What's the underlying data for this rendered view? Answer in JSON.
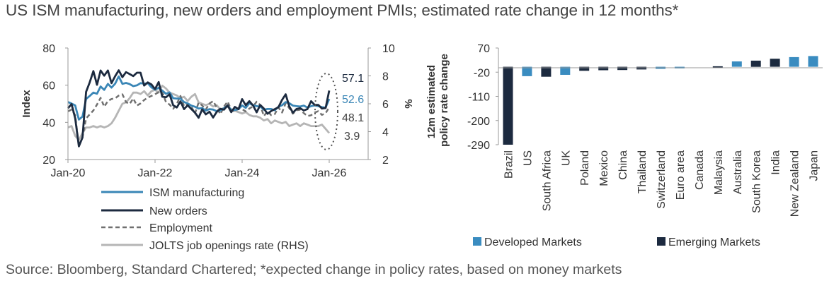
{
  "title": "US ISM manufacturing, new orders and employment PMIs; estimated rate change in 12 months*",
  "source": "Source: Bloomberg, Standard Chartered; *expected change in policy rates, based on money markets",
  "colors": {
    "ism": "#3a86b6",
    "new_orders": "#1c2a3f",
    "employment": "#707070",
    "jolts": "#b5b5b5",
    "developed": "#3a8cc0",
    "emerging": "#1c2a3f",
    "axis": "#9a9a9a"
  },
  "chart_data": [
    {
      "type": "line",
      "title": "",
      "ylabel": "Index",
      "y2label": "%",
      "xlabel": "",
      "xticks": [
        "Jan-20",
        "Jan-22",
        "Jan-24",
        "Jan-26"
      ],
      "ylim": [
        20,
        80
      ],
      "yticks": [
        "80",
        "60",
        "40",
        "20"
      ],
      "y2lim": [
        2,
        10
      ],
      "y2ticks": [
        "10",
        "8",
        "6",
        "4",
        "2"
      ],
      "x_start": 2020.0,
      "x_step": 0.0833333,
      "end_labels": {
        "new_orders": "57.1",
        "ism": "52.6",
        "employment": "48.1",
        "jolts": "3.9"
      },
      "series": [
        {
          "name": "ISM manufacturing",
          "key": "ism",
          "axis": "left",
          "style": "solid",
          "values": [
            50.9,
            50.1,
            49.1,
            41.5,
            43.1,
            52.6,
            54.2,
            56.0,
            55.4,
            59.3,
            57.5,
            60.7,
            58.7,
            60.8,
            64.7,
            60.7,
            61.2,
            60.6,
            59.5,
            59.9,
            61.1,
            60.8,
            61.1,
            58.8,
            57.6,
            58.6,
            57.1,
            55.4,
            56.1,
            53.0,
            52.8,
            52.8,
            50.9,
            50.2,
            49.0,
            48.4,
            47.4,
            47.7,
            46.3,
            47.1,
            46.9,
            46.0,
            46.4,
            47.6,
            49.0,
            46.7,
            46.7,
            47.1,
            49.1,
            47.8,
            50.3,
            49.2,
            48.7,
            48.5,
            46.8,
            47.2,
            47.2,
            46.5,
            48.4,
            49.2,
            50.9,
            50.3,
            49.0,
            48.7,
            48.5,
            49.0,
            48.0,
            48.7,
            49.1,
            48.7,
            48.2,
            47.9,
            52.6
          ]
        },
        {
          "name": "New orders",
          "key": "new_orders",
          "axis": "left",
          "style": "solid",
          "values": [
            47.6,
            49.8,
            42.2,
            27.1,
            31.8,
            56.4,
            61.5,
            67.6,
            60.2,
            67.9,
            65.1,
            67.9,
            61.1,
            64.8,
            68.0,
            64.3,
            67.0,
            66.0,
            64.9,
            66.7,
            66.7,
            59.8,
            61.5,
            60.4,
            57.9,
            61.7,
            53.8,
            53.5,
            55.1,
            49.2,
            48.0,
            51.3,
            47.1,
            49.2,
            47.2,
            45.2,
            42.5,
            47.0,
            44.3,
            45.7,
            42.6,
            45.6,
            47.3,
            46.8,
            49.2,
            45.5,
            48.3,
            47.1,
            52.5,
            49.2,
            51.4,
            49.1,
            45.4,
            49.3,
            47.4,
            44.6,
            46.1,
            47.1,
            48.1,
            52.1,
            55.1,
            48.6,
            45.2,
            47.2,
            47.6,
            46.4,
            47.1,
            51.4,
            49.4,
            49.4,
            47.4,
            47.7,
            57.1
          ]
        },
        {
          "name": "Employment",
          "key": "employment",
          "axis": "left",
          "style": "dashed",
          "values": [
            45.9,
            46.9,
            43.8,
            27.5,
            32.1,
            42.1,
            44.3,
            46.4,
            49.6,
            53.2,
            48.4,
            51.5,
            52.6,
            52.9,
            54.4,
            55.1,
            50.9,
            49.9,
            52.9,
            49.0,
            50.2,
            52.0,
            53.3,
            54.2,
            55.1,
            56.3,
            56.3,
            50.9,
            49.6,
            47.3,
            49.9,
            54.2,
            48.7,
            50.0,
            48.4,
            44.8,
            50.6,
            49.1,
            46.9,
            50.2,
            51.4,
            48.1,
            44.4,
            48.5,
            51.2,
            46.8,
            45.8,
            47.5,
            47.1,
            45.9,
            47.4,
            48.6,
            51.1,
            49.3,
            43.4,
            46.0,
            43.9,
            44.4,
            48.1,
            45.3,
            50.3,
            47.6,
            44.7,
            46.5,
            46.8,
            45.0,
            43.4,
            43.8,
            45.3,
            46.0,
            44.0,
            44.9,
            48.1
          ]
        },
        {
          "name": "JOLTS job openings rate (RHS)",
          "key": "jolts",
          "axis": "right",
          "style": "solid",
          "values": [
            4.3,
            4.4,
            3.7,
            3.4,
            3.9,
            4.3,
            4.3,
            4.4,
            4.3,
            4.4,
            4.3,
            4.4,
            4.6,
            5.0,
            5.5,
            6.0,
            6.1,
            6.4,
            6.8,
            6.8,
            6.7,
            6.9,
            6.6,
            6.9,
            7.0,
            6.8,
            7.3,
            7.1,
            6.8,
            6.7,
            6.6,
            6.4,
            6.5,
            6.2,
            6.5,
            6.7,
            6.1,
            6.0,
            5.9,
            6.0,
            5.8,
            5.9,
            5.6,
            5.7,
            5.8,
            5.6,
            5.5,
            5.4,
            5.3,
            5.4,
            5.2,
            5.1,
            5.1,
            5.0,
            4.8,
            4.9,
            4.6,
            4.8,
            4.7,
            4.6,
            4.7,
            4.4,
            4.5,
            4.6,
            4.4,
            4.6,
            4.5,
            4.4,
            4.4,
            4.4,
            4.5,
            4.2,
            3.9
          ]
        }
      ],
      "legend": [
        "ISM manufacturing",
        "New orders",
        "Employment",
        "JOLTS job openings rate (RHS)"
      ]
    },
    {
      "type": "bar",
      "title": "",
      "ylabel": "12m estimated policy rate change",
      "ylabel_lines": [
        "12m estimated",
        "policy rate change"
      ],
      "ylim": [
        -290,
        70
      ],
      "yticks": [
        "70",
        "-20",
        "-110",
        "-200",
        "-290"
      ],
      "categories": [
        "Brazil",
        "US",
        "South Africa",
        "UK",
        "Poland",
        "Mexico",
        "China",
        "Thailand",
        "Switzerland",
        "Euro area",
        "Canada",
        "Malaysia",
        "Australia",
        "South Korea",
        "India",
        "New Zealand",
        "Japan"
      ],
      "values": [
        -290,
        -35,
        -37,
        -30,
        -15,
        -13,
        -12,
        -10,
        -8,
        -6,
        0,
        2,
        20,
        23,
        30,
        36,
        40
      ],
      "groups": [
        "EM",
        "DM",
        "EM",
        "DM",
        "EM",
        "EM",
        "EM",
        "EM",
        "DM",
        "DM",
        "DM",
        "EM",
        "DM",
        "EM",
        "EM",
        "DM",
        "DM"
      ],
      "legend": [
        "Developed Markets",
        "Emerging Markets"
      ]
    }
  ]
}
